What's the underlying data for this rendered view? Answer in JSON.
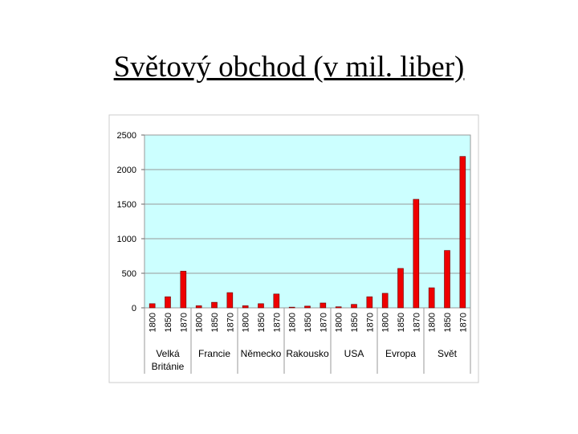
{
  "chart_data": {
    "type": "bar",
    "title": "Světový obchod (v mil. liber)",
    "ylim": [
      0,
      2500
    ],
    "yticks": [
      0,
      500,
      1000,
      1500,
      2000,
      2500
    ],
    "grid": true,
    "color": "#ee0000",
    "background": "#ccffff",
    "groups": [
      {
        "name": "Velká Británie",
        "categories": [
          "1800",
          "1850",
          "1870"
        ],
        "values": [
          60,
          160,
          530
        ]
      },
      {
        "name": "Francie",
        "categories": [
          "1800",
          "1850",
          "1870"
        ],
        "values": [
          30,
          80,
          220
        ]
      },
      {
        "name": "Německo",
        "categories": [
          "1800",
          "1850",
          "1870"
        ],
        "values": [
          30,
          60,
          200
        ]
      },
      {
        "name": "Rakousko",
        "categories": [
          "1800",
          "1850",
          "1870"
        ],
        "values": [
          10,
          25,
          70
        ]
      },
      {
        "name": "USA",
        "categories": [
          "1800",
          "1850",
          "1870"
        ],
        "values": [
          15,
          50,
          160
        ]
      },
      {
        "name": "Evropa",
        "categories": [
          "1800",
          "1850",
          "1870"
        ],
        "values": [
          210,
          570,
          1570
        ]
      },
      {
        "name": "Svět",
        "categories": [
          "1800",
          "1850",
          "1870"
        ],
        "values": [
          290,
          830,
          2190
        ]
      }
    ]
  }
}
